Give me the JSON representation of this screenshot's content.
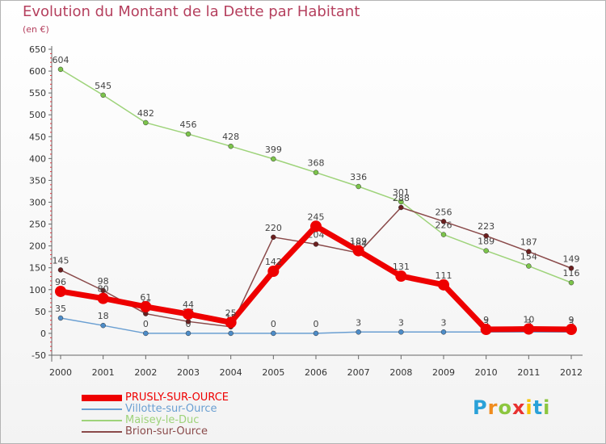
{
  "title": "Evolution du Montant de la Dette par Habitant",
  "unit": "(en €)",
  "logo": {
    "text": "Proxiti",
    "letters": [
      "P",
      "r",
      "o",
      "x",
      "i",
      "t",
      "i"
    ],
    "colors": [
      "#2aa1d8",
      "#f08c1e",
      "#8cc63f",
      "#e8312f",
      "#f7c300",
      "#2aa1d8",
      "#8cc63f"
    ]
  },
  "chart_data": {
    "type": "line",
    "title": "Evolution du Montant de la Dette par Habitant",
    "ylabel": "(en €)",
    "xlabel": "",
    "ylim": [
      -50,
      650
    ],
    "yticks": [
      -50,
      0,
      50,
      100,
      150,
      200,
      250,
      300,
      350,
      400,
      450,
      500,
      550,
      600,
      650
    ],
    "categories": [
      "2000",
      "2001",
      "2002",
      "2003",
      "2004",
      "2005",
      "2006",
      "2007",
      "2008",
      "2009",
      "2010",
      "2011",
      "2012"
    ],
    "grid": false,
    "legend": "bottom-left",
    "series": [
      {
        "name": "Villotte-sur-Ource",
        "color": "#6a9fd2",
        "dot": "#4d8cc8",
        "width": 1.5,
        "values": [
          35,
          18,
          0,
          0,
          0,
          0,
          0,
          3,
          3,
          3,
          3,
          3,
          3
        ],
        "labels": [
          "35",
          "18",
          "0",
          "0",
          "0",
          "0",
          "0",
          "3",
          "3",
          "3",
          "3",
          "3",
          "3"
        ]
      },
      {
        "name": "Maisey-le-Duc",
        "color": "#9ed37a",
        "dot": "#7cc44b",
        "width": 1.5,
        "values": [
          604,
          545,
          482,
          456,
          428,
          399,
          368,
          336,
          301,
          226,
          189,
          154,
          116
        ],
        "labels": [
          "604",
          "545",
          "482",
          "456",
          "428",
          "399",
          "368",
          "336",
          "301",
          "226",
          "189",
          "154",
          "116"
        ]
      },
      {
        "name": "Brion-sur-Ource",
        "color": "#8a4a4a",
        "dot": "#6b1f1f",
        "width": 1.5,
        "values": [
          145,
          98,
          45,
          27,
          15,
          220,
          204,
          184,
          288,
          256,
          223,
          187,
          149
        ],
        "labels": [
          "145",
          "98",
          "45",
          "27",
          "15",
          "220",
          "204",
          "184",
          "288",
          "256",
          "223",
          "187",
          "149"
        ]
      },
      {
        "name": "PRUSLY-SUR-OURCE",
        "color": "#ee0000",
        "dot": "#ee0000",
        "width": 7,
        "values": [
          96,
          80,
          61,
          44,
          25,
          142,
          245,
          189,
          131,
          111,
          9,
          10,
          9
        ],
        "labels": [
          "96",
          "80",
          "61",
          "44",
          "25",
          "142",
          "245",
          "189",
          "131",
          "111",
          "9",
          "10",
          "9"
        ]
      }
    ],
    "legend_order": [
      "PRUSLY-SUR-OURCE",
      "Villotte-sur-Ource",
      "Maisey-le-Duc",
      "Brion-sur-Ource"
    ]
  }
}
